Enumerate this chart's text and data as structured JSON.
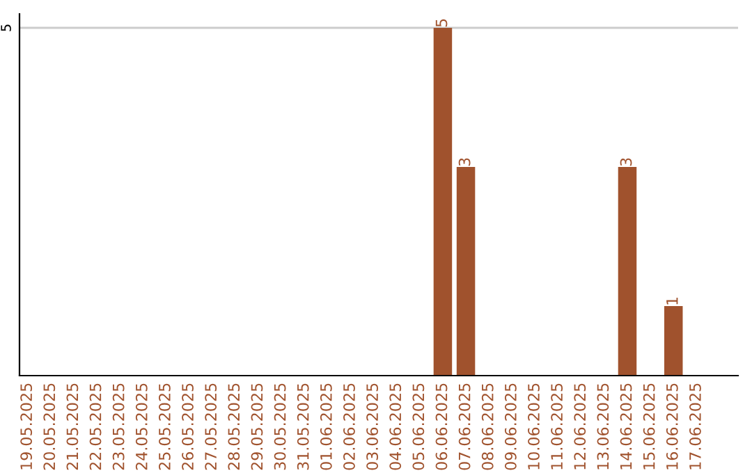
{
  "chart_data": {
    "type": "bar",
    "categories": [
      "19.05.2025",
      "20.05.2025",
      "21.05.2025",
      "22.05.2025",
      "23.05.2025",
      "24.05.2025",
      "25.05.2025",
      "26.05.2025",
      "27.05.2025",
      "28.05.2025",
      "29.05.2025",
      "30.05.2025",
      "31.05.2025",
      "01.06.2025",
      "02.06.2025",
      "03.06.2025",
      "04.06.2025",
      "05.06.2025",
      "06.06.2025",
      "07.06.2025",
      "08.06.2025",
      "09.06.2025",
      "10.06.2025",
      "11.06.2025",
      "12.06.2025",
      "13.06.2025",
      "14.06.2025",
      "15.06.2025",
      "16.06.2025",
      "17.06.2025"
    ],
    "values": [
      null,
      null,
      null,
      null,
      null,
      null,
      null,
      null,
      null,
      null,
      null,
      null,
      null,
      null,
      null,
      null,
      null,
      null,
      5,
      3,
      null,
      null,
      null,
      null,
      null,
      null,
      3,
      null,
      1,
      null
    ],
    "data_labels": true,
    "color": "#a0522d",
    "ref_lines": [
      {
        "axis": "y",
        "value": 5,
        "label": "5",
        "color": "#cccccc"
      }
    ],
    "legend": false
  }
}
